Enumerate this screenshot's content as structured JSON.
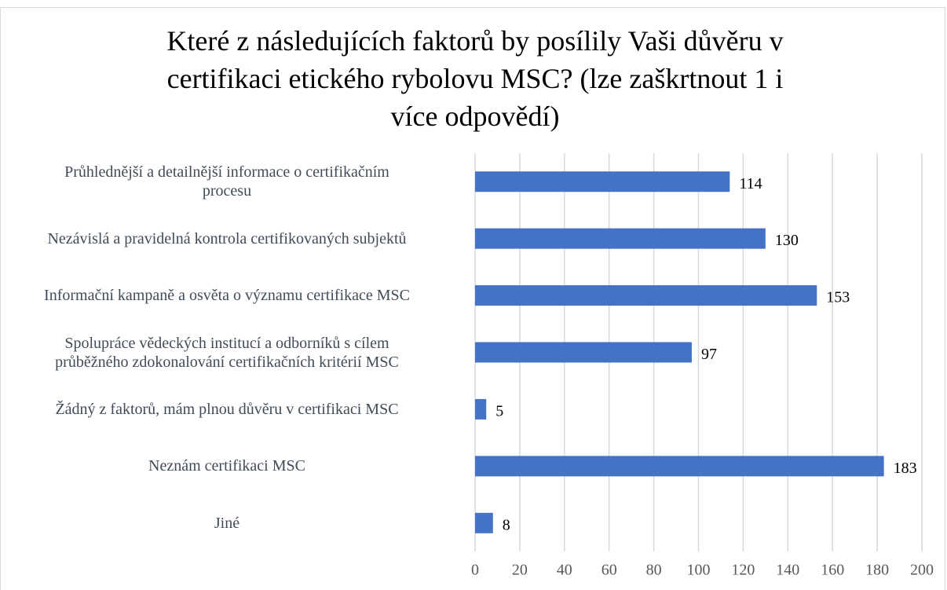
{
  "chart_data": {
    "type": "bar",
    "orientation": "horizontal",
    "title": "Které z následujících faktorů by posílily Vaši důvěru v certifikaci etického rybolovu MSC?  (lze zaškrtnout 1 i více odpovědí)",
    "categories": [
      "Průhlednější a detailnější informace o certifikačním\nprocesu",
      "Nezávislá a pravidelná kontrola certifikovaných subjektů",
      "Informační kampaně a osvěta o významu certifikace MSC",
      "Spolupráce vědeckých institucí a odborníků s cílem\nprůběžného zdokonalování certifikačních kritérií MSC",
      "Žádný z faktorů, mám plnou důvěru v certifikaci MSC",
      "Neznám certifikaci MSC",
      "Jiné"
    ],
    "values": [
      114,
      130,
      153,
      97,
      5,
      183,
      8
    ],
    "color": "#4472c4",
    "xlim": [
      0,
      200
    ],
    "xticks": [
      0,
      20,
      40,
      60,
      80,
      100,
      120,
      140,
      160,
      180,
      200
    ],
    "grid": true
  }
}
